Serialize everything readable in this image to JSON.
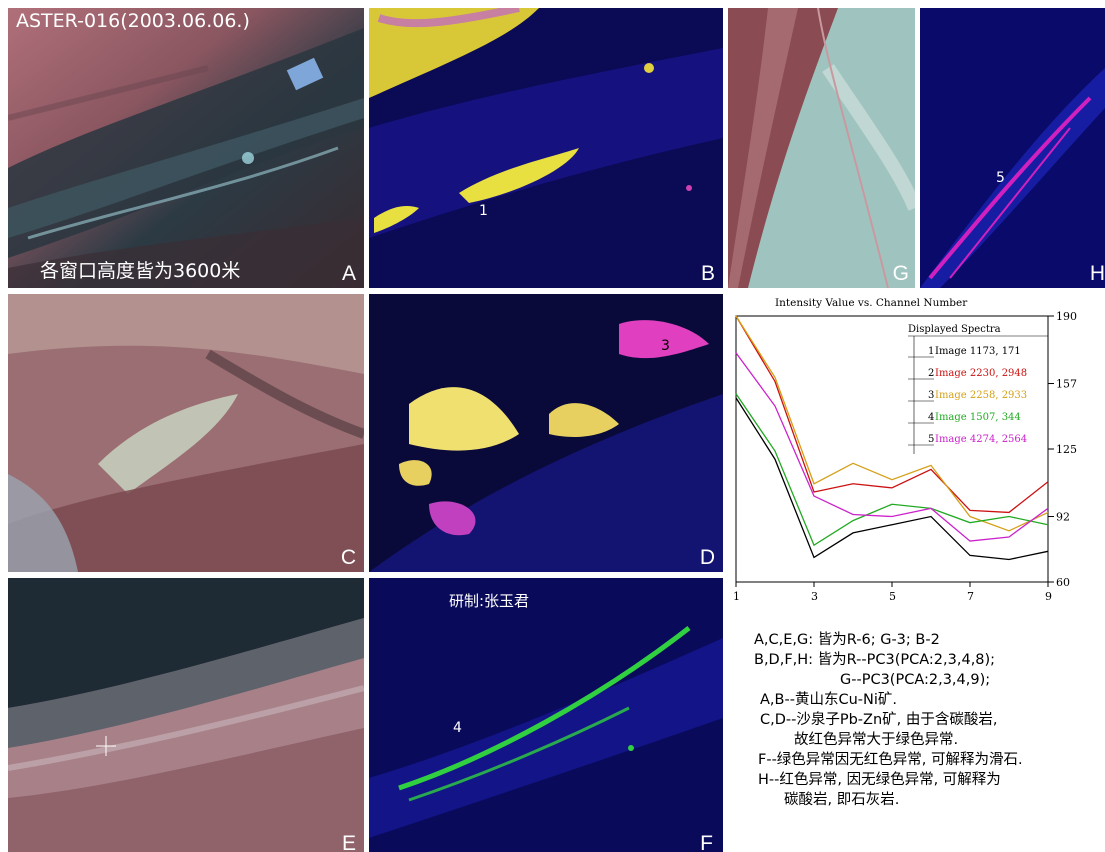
{
  "panels": {
    "a": {
      "letter": "A",
      "header": "ASTER-016(2003.06.06.)",
      "caption": "各窗口高度皆为3600米"
    },
    "b": {
      "letter": "B",
      "marker": "1"
    },
    "c": {
      "letter": "C"
    },
    "d": {
      "letter": "D",
      "marker": "3"
    },
    "e": {
      "letter": "E"
    },
    "f": {
      "letter": "F",
      "marker": "4",
      "credit": "研制:张玉君"
    },
    "g": {
      "letter": "G"
    },
    "h": {
      "letter": "H",
      "marker": "5"
    }
  },
  "chart_data": {
    "type": "line",
    "title": "Intensity Value vs. Channel Number",
    "x": [
      1,
      2,
      3,
      4,
      5,
      6,
      7,
      8,
      9
    ],
    "xticks": [
      "1",
      "3",
      "5",
      "7",
      "9"
    ],
    "yticks": [
      "190",
      "157",
      "125",
      "92",
      "60"
    ],
    "xlim": [
      1,
      9
    ],
    "ylim": [
      60,
      190
    ],
    "legend_title": "Displayed Spectra",
    "legend_position": "top-right",
    "series": [
      {
        "name": "Image 1173, 171",
        "index": "1",
        "color": "#000000",
        "values": [
          150,
          120,
          72,
          84,
          88,
          92,
          73,
          71,
          75
        ]
      },
      {
        "name": "Image 2230, 2948",
        "index": "2",
        "color": "#cc1111",
        "values": [
          190,
          158,
          104,
          108,
          106,
          115,
          95,
          94,
          109
        ]
      },
      {
        "name": "Image 2258, 2933",
        "index": "3",
        "color": "#d4a017",
        "values": [
          190,
          160,
          108,
          118,
          110,
          117,
          92,
          85,
          94
        ]
      },
      {
        "name": "Image 1507, 344",
        "index": "4",
        "color": "#22aa22",
        "values": [
          152,
          124,
          78,
          90,
          98,
          96,
          89,
          92,
          88
        ]
      },
      {
        "name": "Image 4274, 2564",
        "index": "5",
        "color": "#cc22cc",
        "values": [
          172,
          146,
          102,
          93,
          92,
          96,
          80,
          82,
          96
        ]
      }
    ]
  },
  "notes": [
    "A,C,E,G: 皆为R-6; G-3; B-2",
    "B,D,F,H: 皆为R--PC3(PCA:2,3,4,8);",
    "G--PC3(PCA:2,3,4,9);",
    "A,B--黄山东Cu-Ni矿.",
    "C,D--沙泉子Pb-Zn矿, 由于含碳酸岩,",
    "故红色异常大于绿色异常.",
    "F--绿色异常因无红色异常, 可解释为滑石.",
    "H--红色异常, 因无绿色异常, 可解释为",
    "碳酸岩, 即石灰岩."
  ]
}
